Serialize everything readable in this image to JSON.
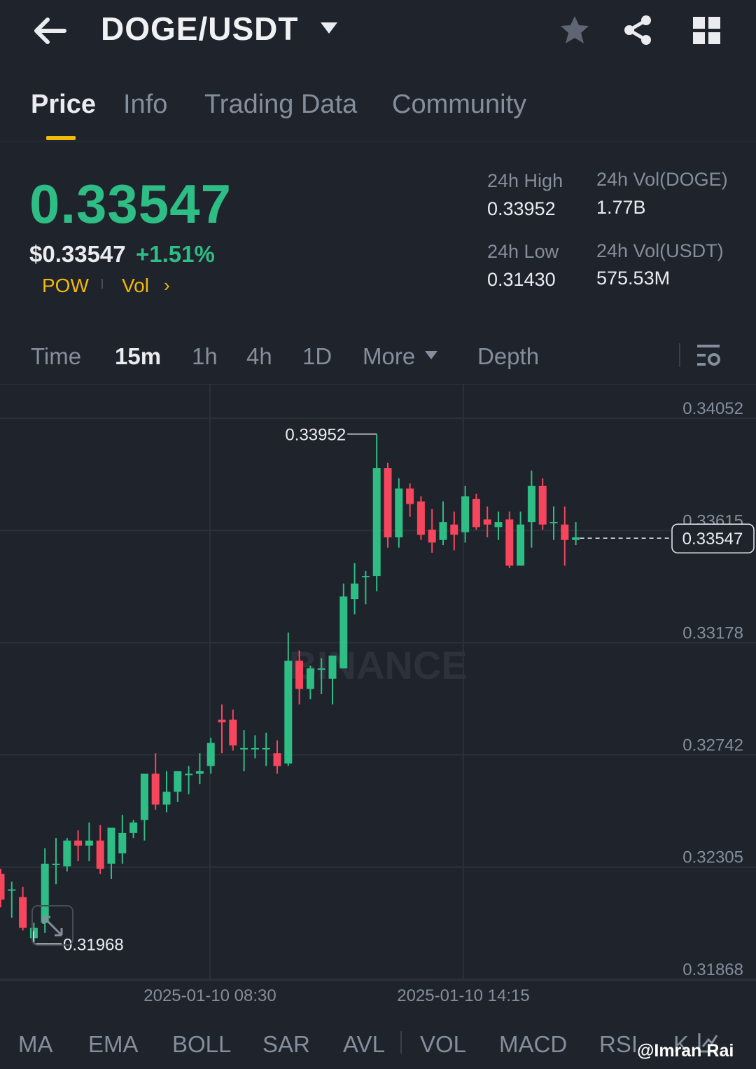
{
  "header": {
    "pair": "DOGE/USDT",
    "icons": [
      "back-arrow-icon",
      "dropdown-caret-icon",
      "star-icon",
      "share-icon",
      "grid-icon"
    ]
  },
  "tabs": [
    {
      "label": "Price",
      "active": true
    },
    {
      "label": "Info",
      "active": false
    },
    {
      "label": "Trading Data",
      "active": false
    },
    {
      "label": "Community",
      "active": false
    }
  ],
  "ticker": {
    "last_price": "0.33547",
    "usd_price": "$0.33547",
    "change_pct": "+1.51%",
    "tag1": "POW",
    "tag2": "Vol",
    "chevron": "›"
  },
  "stats": {
    "high_label": "24h High",
    "high_value": "0.33952",
    "low_label": "24h Low",
    "low_value": "0.31430",
    "vol_base_label": "24h Vol(DOGE)",
    "vol_base_value": "1.77B",
    "vol_quote_label": "24h Vol(USDT)",
    "vol_quote_value": "575.53M"
  },
  "intervals": {
    "time": "Time",
    "i15m": "15m",
    "i1h": "1h",
    "i4h": "4h",
    "i1d": "1D",
    "more": "More",
    "depth": "Depth",
    "active": "15m"
  },
  "indicators": [
    "MA",
    "EMA",
    "BOLL",
    "SAR",
    "AVL",
    "VOL",
    "MACD",
    "RSI",
    "K"
  ],
  "credit": "@Imran Rai",
  "colors": {
    "background": "#1f232b",
    "up": "#2ebd85",
    "down": "#f6465d",
    "accent": "#f0b90b",
    "muted": "#848e9c",
    "text": "#eaecef"
  },
  "chart_data": {
    "type": "candlestick",
    "y_ticks": [
      "0.34052",
      "0.33615",
      "0.33178",
      "0.32742",
      "0.32305",
      "0.31868"
    ],
    "ylim": [
      0.31868,
      0.34052
    ],
    "x_ticks": [
      "2025-01-10 08:30",
      "2025-01-10 14:15"
    ],
    "high_marker": "0.33952",
    "low_marker": "0.31968",
    "current_price": "0.33547",
    "watermark": "BINANCE",
    "candles": [
      {
        "o": 0.3224,
        "h": 0.3226,
        "l": 0.3211,
        "c": 0.3214
      },
      {
        "o": 0.3218,
        "h": 0.3221,
        "l": 0.3207,
        "c": 0.3218
      },
      {
        "o": 0.3215,
        "h": 0.3219,
        "l": 0.3202,
        "c": 0.3203
      },
      {
        "o": 0.3199,
        "h": 0.3205,
        "l": 0.3197,
        "c": 0.3203
      },
      {
        "o": 0.3205,
        "h": 0.3234,
        "l": 0.3201,
        "c": 0.3228
      },
      {
        "o": 0.3228,
        "h": 0.3238,
        "l": 0.322,
        "c": 0.3228
      },
      {
        "o": 0.3227,
        "h": 0.3238,
        "l": 0.3225,
        "c": 0.3237
      },
      {
        "o": 0.3237,
        "h": 0.3241,
        "l": 0.3229,
        "c": 0.3235
      },
      {
        "o": 0.3235,
        "h": 0.3244,
        "l": 0.3229,
        "c": 0.3237
      },
      {
        "o": 0.3237,
        "h": 0.3243,
        "l": 0.3224,
        "c": 0.3226
      },
      {
        "o": 0.3228,
        "h": 0.324,
        "l": 0.3222,
        "c": 0.3242
      },
      {
        "o": 0.3232,
        "h": 0.3247,
        "l": 0.3228,
        "c": 0.324
      },
      {
        "o": 0.324,
        "h": 0.3245,
        "l": 0.3238,
        "c": 0.3244
      },
      {
        "o": 0.3245,
        "h": 0.3262,
        "l": 0.3237,
        "c": 0.3263
      },
      {
        "o": 0.3263,
        "h": 0.3271,
        "l": 0.3249,
        "c": 0.3251
      },
      {
        "o": 0.3251,
        "h": 0.3264,
        "l": 0.3248,
        "c": 0.3256
      },
      {
        "o": 0.3256,
        "h": 0.3264,
        "l": 0.3252,
        "c": 0.3264
      },
      {
        "o": 0.3263,
        "h": 0.3266,
        "l": 0.3255,
        "c": 0.3263
      },
      {
        "o": 0.3263,
        "h": 0.3271,
        "l": 0.3259,
        "c": 0.3264
      },
      {
        "o": 0.3266,
        "h": 0.3277,
        "l": 0.3263,
        "c": 0.3275
      },
      {
        "o": 0.3284,
        "h": 0.329,
        "l": 0.3271,
        "c": 0.3283
      },
      {
        "o": 0.3284,
        "h": 0.3288,
        "l": 0.3272,
        "c": 0.3274
      },
      {
        "o": 0.3273,
        "h": 0.328,
        "l": 0.3264,
        "c": 0.3273
      },
      {
        "o": 0.3273,
        "h": 0.3278,
        "l": 0.3269,
        "c": 0.3273
      },
      {
        "o": 0.3273,
        "h": 0.3279,
        "l": 0.3266,
        "c": 0.3273
      },
      {
        "o": 0.3271,
        "h": 0.3276,
        "l": 0.3263,
        "c": 0.3266
      },
      {
        "o": 0.3267,
        "h": 0.3318,
        "l": 0.3266,
        "c": 0.3307
      },
      {
        "o": 0.3307,
        "h": 0.3311,
        "l": 0.329,
        "c": 0.3296
      },
      {
        "o": 0.3296,
        "h": 0.3305,
        "l": 0.3292,
        "c": 0.3304
      },
      {
        "o": 0.3304,
        "h": 0.3308,
        "l": 0.3294,
        "c": 0.3304
      },
      {
        "o": 0.33,
        "h": 0.3308,
        "l": 0.329,
        "c": 0.3309
      },
      {
        "o": 0.3304,
        "h": 0.3337,
        "l": 0.3304,
        "c": 0.3332
      },
      {
        "o": 0.3331,
        "h": 0.3345,
        "l": 0.3325,
        "c": 0.3337
      },
      {
        "o": 0.334,
        "h": 0.3342,
        "l": 0.3329,
        "c": 0.334
      },
      {
        "o": 0.334,
        "h": 0.3395,
        "l": 0.3334,
        "c": 0.3382
      },
      {
        "o": 0.3382,
        "h": 0.3384,
        "l": 0.3351,
        "c": 0.3355
      },
      {
        "o": 0.3355,
        "h": 0.3378,
        "l": 0.3351,
        "c": 0.3374
      },
      {
        "o": 0.3374,
        "h": 0.3376,
        "l": 0.3363,
        "c": 0.3368
      },
      {
        "o": 0.3369,
        "h": 0.3371,
        "l": 0.3354,
        "c": 0.3356
      },
      {
        "o": 0.3358,
        "h": 0.3366,
        "l": 0.3349,
        "c": 0.3353
      },
      {
        "o": 0.3354,
        "h": 0.3369,
        "l": 0.3352,
        "c": 0.3361
      },
      {
        "o": 0.336,
        "h": 0.3365,
        "l": 0.335,
        "c": 0.3356
      },
      {
        "o": 0.3357,
        "h": 0.3375,
        "l": 0.3353,
        "c": 0.3371
      },
      {
        "o": 0.337,
        "h": 0.3372,
        "l": 0.3358,
        "c": 0.3359
      },
      {
        "o": 0.3362,
        "h": 0.3367,
        "l": 0.3355,
        "c": 0.336
      },
      {
        "o": 0.3359,
        "h": 0.3365,
        "l": 0.3354,
        "c": 0.3361
      },
      {
        "o": 0.3362,
        "h": 0.3365,
        "l": 0.3343,
        "c": 0.3344
      },
      {
        "o": 0.3344,
        "h": 0.3365,
        "l": 0.3344,
        "c": 0.336
      },
      {
        "o": 0.3361,
        "h": 0.3381,
        "l": 0.3351,
        "c": 0.3375
      },
      {
        "o": 0.3375,
        "h": 0.3378,
        "l": 0.3358,
        "c": 0.336
      },
      {
        "o": 0.3361,
        "h": 0.3367,
        "l": 0.3354,
        "c": 0.3361
      },
      {
        "o": 0.336,
        "h": 0.3367,
        "l": 0.3344,
        "c": 0.3354
      },
      {
        "o": 0.3354,
        "h": 0.3361,
        "l": 0.3352,
        "c": 0.3355
      }
    ]
  }
}
